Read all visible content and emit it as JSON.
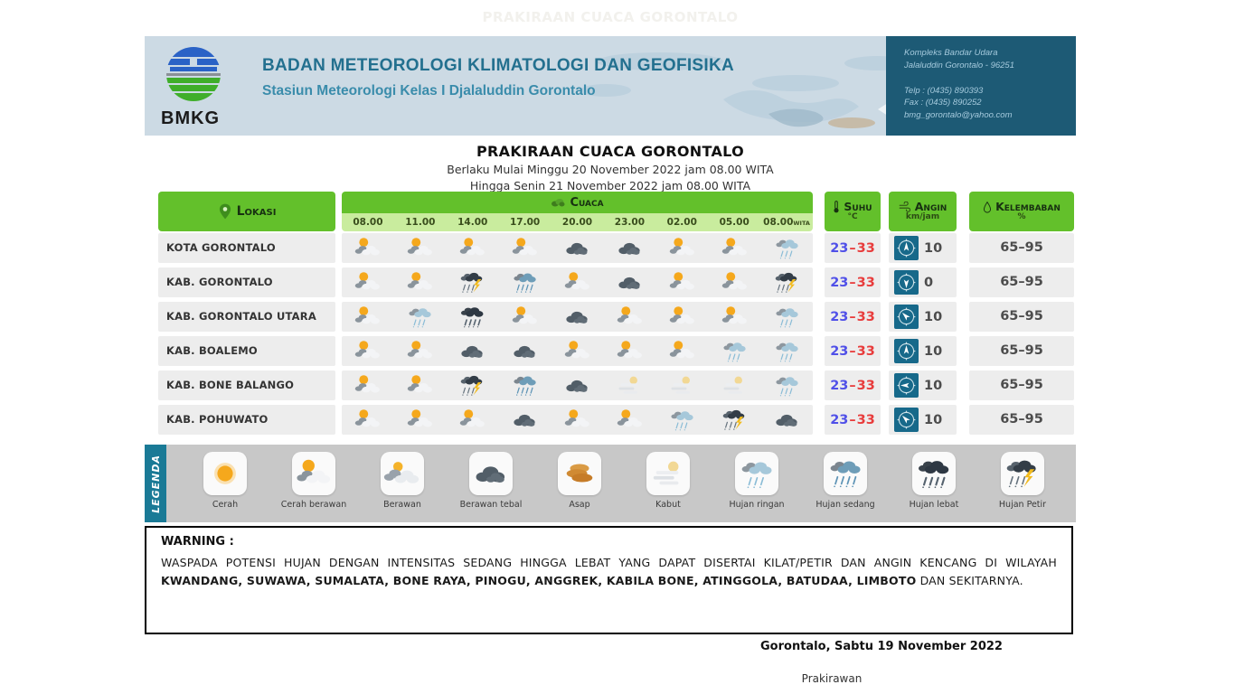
{
  "page": {
    "watermark_title": "PRAKIRAAN CUACA GORONTALO"
  },
  "header": {
    "logo_label": "BMKG",
    "org_title": "BADAN METEOROLOGI KLIMATOLOGI DAN GEOFISIKA",
    "station_subtitle": "Stasiun Meteorologi Kelas I Djalaluddin Gorontalo",
    "address": {
      "line1": "Kompleks Bandar Udara",
      "line2": "Jalaluddin  Gorontalo - 96251",
      "telp": "Telp : (0435) 890393",
      "fax": "Fax : (0435) 890252",
      "email": "bmg_gorontalo@yahoo.com"
    }
  },
  "title_block": {
    "title": "PRAKIRAAN CUACA GORONTALO",
    "validity_line1": "Berlaku Mulai Minggu 20 November 2022 jam 08.00 WITA",
    "validity_line2": "Hingga Senin 21 November 2022 jam 08.00 WITA"
  },
  "table": {
    "headers": {
      "lokasi": "Lokasi",
      "cuaca": "Cuaca",
      "suhu": "Suhu",
      "suhu_unit": "°C",
      "angin": "Angin",
      "angin_unit": "km/jam",
      "kelembaban": "Kelembaban",
      "kelembaban_unit": "%"
    },
    "times": [
      "08.00",
      "11.00",
      "14.00",
      "17.00",
      "20.00",
      "23.00",
      "02.00",
      "05.00",
      "08.00"
    ],
    "times_suffix": "WITA",
    "rows": [
      {
        "location": "KOTA GORONTALO",
        "icons": [
          "cerah-berawan",
          "cerah-berawan",
          "cerah-berawan",
          "cerah-berawan",
          "berawan-tebal",
          "berawan-tebal",
          "cerah-berawan",
          "cerah-berawan",
          "hujan-ringan"
        ],
        "temp_min": "23",
        "temp_max": "33",
        "wind": "10",
        "wind_dir_deg": 0,
        "humidity": "65–95"
      },
      {
        "location": "KAB. GORONTALO",
        "icons": [
          "cerah-berawan",
          "cerah-berawan",
          "hujan-petir",
          "hujan-sedang",
          "cerah-berawan",
          "berawan-tebal",
          "cerah-berawan",
          "cerah-berawan",
          "hujan-petir"
        ],
        "temp_min": "23",
        "temp_max": "33",
        "wind": "0",
        "wind_dir_deg": 180,
        "humidity": "65–95"
      },
      {
        "location": "KAB. GORONTALO UTARA",
        "icons": [
          "cerah-berawan",
          "hujan-ringan",
          "hujan-lebat",
          "cerah-berawan",
          "berawan-tebal",
          "cerah-berawan",
          "cerah-berawan",
          "cerah-berawan",
          "hujan-ringan"
        ],
        "temp_min": "23",
        "temp_max": "33",
        "wind": "10",
        "wind_dir_deg": 315,
        "humidity": "65–95"
      },
      {
        "location": "KAB. BOALEMO",
        "icons": [
          "cerah-berawan",
          "cerah-berawan",
          "berawan-tebal",
          "berawan-tebal",
          "cerah-berawan",
          "cerah-berawan",
          "cerah-berawan",
          "hujan-ringan",
          "hujan-ringan"
        ],
        "temp_min": "23",
        "temp_max": "33",
        "wind": "10",
        "wind_dir_deg": 0,
        "humidity": "65–95"
      },
      {
        "location": "KAB. BONE BALANGO",
        "icons": [
          "cerah-berawan",
          "cerah-berawan",
          "hujan-petir",
          "hujan-sedang",
          "berawan-tebal",
          "kabut",
          "kabut",
          "kabut",
          "hujan-ringan"
        ],
        "temp_min": "23",
        "temp_max": "33",
        "wind": "10",
        "wind_dir_deg": 270,
        "humidity": "65–95"
      },
      {
        "location": "KAB. POHUWATO",
        "icons": [
          "cerah-berawan",
          "cerah-berawan",
          "cerah-berawan",
          "berawan-tebal",
          "cerah-berawan",
          "cerah-berawan",
          "hujan-ringan",
          "hujan-petir",
          "berawan-tebal"
        ],
        "temp_min": "23",
        "temp_max": "33",
        "wind": "10",
        "wind_dir_deg": 315,
        "humidity": "65–95"
      }
    ]
  },
  "legend": {
    "title": "LEGENDA",
    "items": [
      {
        "icon": "cerah",
        "label": "Cerah"
      },
      {
        "icon": "cerah-berawan",
        "label": "Cerah berawan"
      },
      {
        "icon": "berawan",
        "label": "Berawan"
      },
      {
        "icon": "berawan-tebal",
        "label": "Berawan tebal"
      },
      {
        "icon": "asap",
        "label": "Asap"
      },
      {
        "icon": "kabut",
        "label": "Kabut"
      },
      {
        "icon": "hujan-ringan",
        "label": "Hujan ringan"
      },
      {
        "icon": "hujan-sedang",
        "label": "Hujan sedang"
      },
      {
        "icon": "hujan-lebat",
        "label": "Hujan lebat"
      },
      {
        "icon": "hujan-petir",
        "label": "Hujan Petir"
      }
    ]
  },
  "warning": {
    "title": "WARNING :",
    "text_normal1": "WASPADA POTENSI HUJAN DENGAN INTENSITAS SEDANG HINGGA LEBAT YANG DAPAT DISERTAI KILAT/PETIR DAN ANGIN KENCANG DI WILAYAH ",
    "text_bold": "KWANDANG, SUWAWA, SUMALATA, BONE RAYA, PINOGU, ANGGREK, KABILA BONE, ATINGGOLA, BATUDAA, LIMBOTO",
    "text_normal2": " DAN SEKITARNYA."
  },
  "footer": {
    "date_line": "Gorontalo, Sabtu 19 November 2022",
    "signer": "Prakirawan"
  },
  "colors": {
    "header_green": "#63c02b",
    "time_strip_green": "#c9ec9e",
    "address_teal": "#1d5a75",
    "wind_compass_teal": "#17698a",
    "temp_min_blue": "#5050e8",
    "temp_max_red": "#e83c3c",
    "legend_tab_teal": "#1a7a96"
  }
}
